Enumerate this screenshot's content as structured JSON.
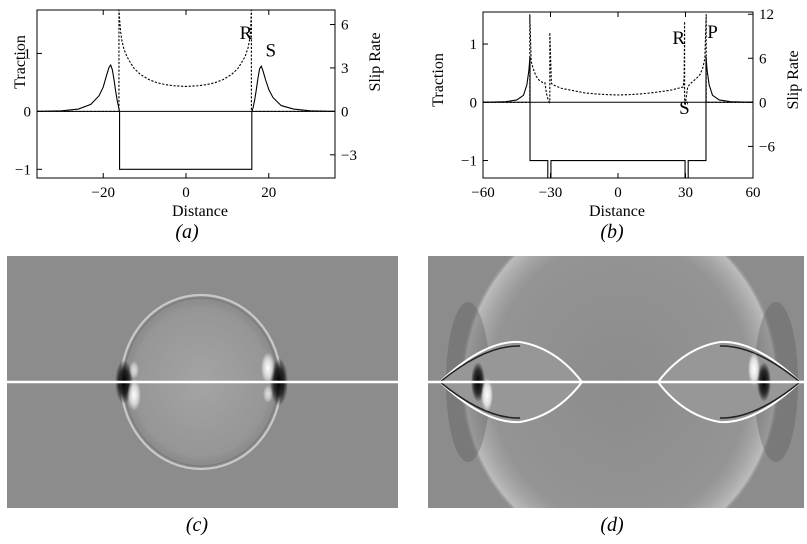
{
  "chart_data": [
    {
      "type": "line",
      "caption": "(a)",
      "xlabel": "Distance",
      "ylabel_left": "Traction",
      "ylabel_right": "Slip Rate",
      "xlim": [
        -36,
        36
      ],
      "ylim_left": [
        -1.15,
        1.75
      ],
      "ylim_right": [
        -4.6,
        7.0
      ],
      "x_ticks": [
        -20,
        0,
        20
      ],
      "x_tick_labels": [
        "−20",
        "0",
        "20"
      ],
      "y_ticks_left": [
        -1,
        0,
        1
      ],
      "y_tick_labels_left": [
        "−1",
        "0",
        "1"
      ],
      "y_ticks_right": [
        -3,
        0,
        3,
        6
      ],
      "y_tick_labels_right": [
        "−3",
        "0",
        "3",
        "6"
      ],
      "annotations": [
        {
          "text": "R",
          "x": 14.5,
          "y": 1.25
        },
        {
          "text": "S",
          "x": 20.5,
          "y": 0.95
        }
      ],
      "series": [
        {
          "axis": "left",
          "style": "solid",
          "x": [
            -36,
            -30,
            -26,
            -23,
            -21,
            -20,
            -19.2,
            -18.6,
            -18.2,
            -17.8,
            -17.4,
            -17.0,
            -16.6,
            -16.2,
            -16.05,
            -16.05,
            15.9,
            15.9,
            16.2,
            16.6,
            17.0,
            17.4,
            17.8,
            18.2,
            18.6,
            19.2,
            20,
            21,
            23,
            26,
            30,
            36
          ],
          "y": [
            0,
            0.01,
            0.04,
            0.12,
            0.27,
            0.42,
            0.62,
            0.76,
            0.8,
            0.72,
            0.55,
            0.35,
            0.18,
            0.05,
            0,
            -1,
            -1,
            0,
            0.06,
            0.2,
            0.38,
            0.58,
            0.74,
            0.78,
            0.7,
            0.55,
            0.38,
            0.24,
            0.1,
            0.04,
            0.01,
            0
          ]
        },
        {
          "axis": "right",
          "style": "dashed",
          "x": [
            -36,
            -16.2,
            -16.2,
            -16.0,
            -15.8,
            -15.5,
            -15.0,
            -14.3,
            -13.5,
            -12.5,
            -11,
            -9,
            -7,
            -5,
            -3,
            0,
            3,
            5,
            7,
            9,
            11,
            12.5,
            13.5,
            14.3,
            15.0,
            15.4,
            15.6,
            15.8,
            15.8,
            36
          ],
          "y": [
            0,
            0,
            7.0,
            6.2,
            5.5,
            4.9,
            4.3,
            3.8,
            3.4,
            2.95,
            2.55,
            2.2,
            1.98,
            1.85,
            1.77,
            1.72,
            1.77,
            1.85,
            1.98,
            2.2,
            2.55,
            2.95,
            3.4,
            3.8,
            4.4,
            5.0,
            5.6,
            7.0,
            0,
            0
          ]
        }
      ]
    },
    {
      "type": "line",
      "caption": "(b)",
      "xlabel": "Distance",
      "ylabel_left": "Traction",
      "ylabel_right": "Slip Rate",
      "xlim": [
        -60,
        60
      ],
      "ylim_left": [
        -1.3,
        1.55
      ],
      "ylim_right": [
        -10.3,
        12.3
      ],
      "x_ticks": [
        -60,
        -30,
        0,
        30,
        60
      ],
      "x_tick_labels": [
        "−60",
        "−30",
        "0",
        "30",
        "60"
      ],
      "y_ticks_left": [
        -1,
        0,
        1
      ],
      "y_tick_labels_left": [
        "−1",
        "0",
        "1"
      ],
      "y_ticks_right": [
        -6,
        0,
        6,
        12
      ],
      "y_tick_labels_right": [
        "−6",
        "0",
        "6",
        "12"
      ],
      "annotations": [
        {
          "text": "R",
          "x": 27,
          "y": 1.0
        },
        {
          "text": "P",
          "x": 42,
          "y": 1.1
        },
        {
          "text": "S",
          "x": 29.5,
          "y": -0.2
        }
      ],
      "series": [
        {
          "axis": "left",
          "style": "solid",
          "x": [
            -60,
            -50,
            -45,
            -42,
            -40.5,
            -39.6,
            -39.1,
            -39.1,
            -31.2,
            -31.2,
            -30.8,
            -30.8,
            -29.8,
            -29.8,
            29.8,
            29.8,
            30.8,
            30.8,
            31.2,
            31.2,
            39.1,
            39.1,
            39.6,
            40.5,
            42,
            45,
            50,
            60
          ],
          "y": [
            0,
            0.01,
            0.04,
            0.12,
            0.3,
            0.55,
            0.78,
            -1,
            -1,
            -1.3,
            -1.3,
            -1.3,
            -1.3,
            -1,
            -1,
            -1.3,
            -1.3,
            -1.3,
            -1.3,
            -1,
            -1,
            0.78,
            0.55,
            0.3,
            0.12,
            0.04,
            0.01,
            0
          ]
        },
        {
          "axis": "right",
          "style": "dashed",
          "x": [
            -60,
            -39.2,
            -39.2,
            -38.6,
            -37.8,
            -36.5,
            -35,
            -33.5,
            -32.5,
            -31.8,
            -31.0,
            -30.4,
            -30.3,
            -30.3,
            -29.6,
            -29.0,
            -27.5,
            -25,
            -20,
            -15,
            -10,
            -5,
            0,
            5,
            10,
            15,
            20,
            24,
            26.5,
            28,
            29.0,
            29.4,
            29.6,
            29.6,
            29.9,
            30.4,
            31.0,
            32.0,
            33.5,
            35,
            36.5,
            37.8,
            38.6,
            39.2,
            39.2,
            60
          ],
          "y": [
            0,
            0,
            12.0,
            5.6,
            4.7,
            3.6,
            3.0,
            2.7,
            2.7,
            1.2,
            0.3,
            0.0,
            0.2,
            9.5,
            2.6,
            2.4,
            2.2,
            1.9,
            1.6,
            1.3,
            1.15,
            1.05,
            1.0,
            1.05,
            1.15,
            1.3,
            1.5,
            1.7,
            1.9,
            2.0,
            2.1,
            3.5,
            11.0,
            -0.4,
            -0.3,
            0.9,
            2.1,
            2.5,
            2.9,
            3.3,
            3.8,
            4.8,
            6.0,
            12.0,
            0,
            0
          ]
        }
      ]
    }
  ],
  "panels": {
    "c": {
      "caption": "(c)"
    },
    "d": {
      "caption": "(d)"
    }
  }
}
